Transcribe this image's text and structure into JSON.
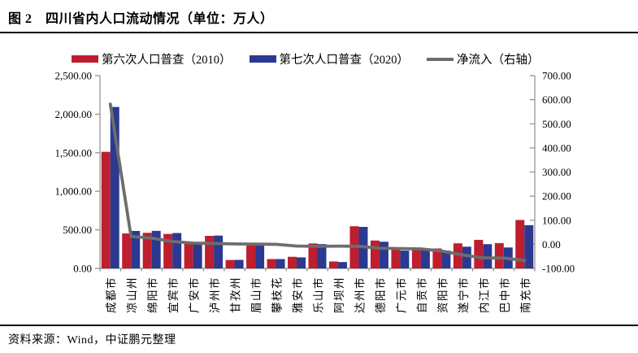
{
  "title": "图 2　四川省内人口流动情况（单位：万人）",
  "source": "资料来源：Wind，中证鹏元整理",
  "colors": {
    "bar_2010": "#BE1E2D",
    "bar_2020": "#2B3990",
    "net_line": "#6D6D6D",
    "axis": "#8C8C8C",
    "text": "#000000"
  },
  "chart_data": {
    "type": "bar",
    "title": "四川省内人口流动情况（单位：万人）",
    "categories": [
      "成都市",
      "凉山州",
      "绵阳市",
      "宜宾市",
      "广安市",
      "泸州市",
      "甘孜州",
      "眉山市",
      "攀枝花",
      "雅安市",
      "乐山市",
      "阿坝州",
      "达州市",
      "德阳市",
      "广元市",
      "自贡市",
      "资阳市",
      "遂宁市",
      "内江市",
      "巴中市",
      "南充市"
    ],
    "series": [
      {
        "name": "第六次人口普查（2010）",
        "type": "bar",
        "axis": "left",
        "color": "#BE1E2D",
        "values": [
          1511.9,
          453.29,
          461.38,
          447.19,
          320.57,
          421.83,
          109.19,
          295.04,
          121.41,
          150.72,
          323.56,
          89.89,
          546.82,
          361.57,
          248.41,
          267.89,
          258.51,
          325.25,
          370.26,
          328.35,
          627.86
        ]
      },
      {
        "name": "第七次人口普查（2020）",
        "type": "bar",
        "axis": "left",
        "color": "#2B3990",
        "values": [
          2093.78,
          485.85,
          486.8,
          458.89,
          325.45,
          425.41,
          110.76,
          295.55,
          121.22,
          143.46,
          315.07,
          82.26,
          538.54,
          345.62,
          230.71,
          248.94,
          230.83,
          281.41,
          314.07,
          271.28,
          560.76
        ]
      },
      {
        "name": "净流入（右轴）",
        "type": "line",
        "axis": "right",
        "color": "#6D6D6D",
        "values": [
          581.88,
          32.56,
          25.42,
          11.7,
          4.88,
          3.58,
          1.57,
          0.51,
          -0.19,
          -7.26,
          -8.49,
          -7.63,
          -8.28,
          -15.95,
          -17.7,
          -18.95,
          -27.68,
          -43.84,
          -56.19,
          -57.07,
          -67.1
        ]
      }
    ],
    "left_axis": {
      "min": 0,
      "max": 2500,
      "tick_labels": [
        "0.00",
        "500.00",
        "1,000.00",
        "1,500.00",
        "2,000.00",
        "2,500.00"
      ]
    },
    "right_axis": {
      "min": -100,
      "max": 700,
      "tick_labels": [
        "-100.00",
        "0.00",
        "100.00",
        "200.00",
        "300.00",
        "400.00",
        "500.00",
        "600.00",
        "700.00"
      ]
    },
    "grid": false,
    "legend_position": "top"
  }
}
